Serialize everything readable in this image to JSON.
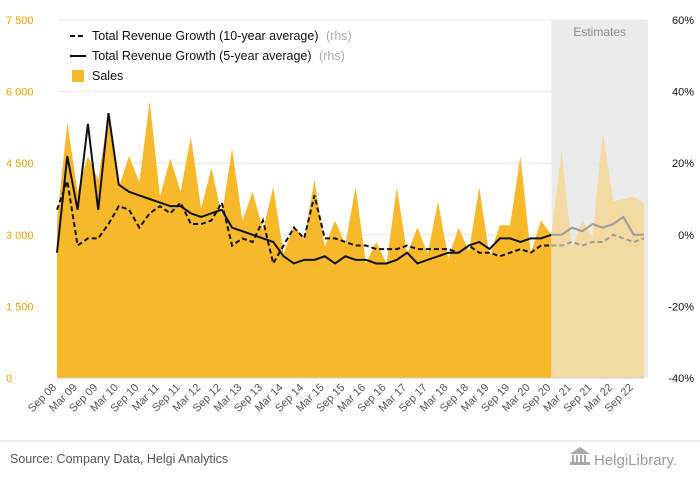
{
  "chart_data": {
    "type": "area",
    "x_labels": [
      "Sep 08",
      "Mar 09",
      "Sep 09",
      "Mar 10",
      "Sep 10",
      "Mar 11",
      "Sep 11",
      "Mar 12",
      "Sep 12",
      "Mar 13",
      "Sep 13",
      "Mar 14",
      "Sep 14",
      "Mar 15",
      "Sep 15",
      "Mar 16",
      "Sep 16",
      "Mar 17",
      "Sep 17",
      "Mar 18",
      "Sep 18",
      "Mar 19",
      "Sep 19",
      "Mar 20",
      "Sep 20",
      "Mar 21",
      "Sep 21",
      "Mar 22",
      "Sep 22"
    ],
    "quarters": [
      "Sep 08",
      "Dec 08",
      "Mar 09",
      "Jun 09",
      "Sep 09",
      "Dec 09",
      "Mar 10",
      "Jun 10",
      "Sep 10",
      "Dec 10",
      "Mar 11",
      "Jun 11",
      "Sep 11",
      "Dec 11",
      "Mar 12",
      "Jun 12",
      "Sep 12",
      "Dec 12",
      "Mar 13",
      "Jun 13",
      "Sep 13",
      "Dec 13",
      "Mar 14",
      "Jun 14",
      "Sep 14",
      "Dec 14",
      "Mar 15",
      "Jun 15",
      "Sep 15",
      "Dec 15",
      "Mar 16",
      "Jun 16",
      "Sep 16",
      "Dec 16",
      "Mar 17",
      "Jun 17",
      "Sep 17",
      "Dec 17",
      "Mar 18",
      "Jun 18",
      "Sep 18",
      "Dec 18",
      "Mar 19",
      "Jun 19",
      "Sep 19",
      "Dec 19",
      "Mar 20",
      "Jun 20",
      "Sep 20",
      "Dec 20",
      "Mar 21",
      "Jun 21",
      "Sep 21",
      "Dec 21",
      "Mar 22",
      "Jun 22",
      "Sep 22",
      "Dec 22"
    ],
    "estimates_start": "Sep 20",
    "estimates_label": "Estimates",
    "y_left": {
      "min": 0,
      "max": 7500,
      "ticks": [
        0,
        1500,
        3000,
        4500,
        6000,
        7500
      ],
      "tick_labels": [
        "0",
        "1 500",
        "3 000",
        "4 500",
        "6 000",
        "7 500"
      ]
    },
    "y_right": {
      "min": -40,
      "max": 60,
      "ticks": [
        -40,
        -20,
        0,
        20,
        40,
        60
      ],
      "tick_labels": [
        "-40%",
        "-20%",
        "0%",
        "20%",
        "40%",
        "60%"
      ]
    },
    "series": [
      {
        "name": "Sales",
        "axis": "left",
        "type": "area",
        "values": [
          3300,
          5350,
          3900,
          4650,
          4150,
          5550,
          4000,
          4650,
          4100,
          5800,
          3800,
          4600,
          3900,
          5050,
          3550,
          4400,
          3400,
          4800,
          3300,
          3900,
          3100,
          4000,
          2600,
          3200,
          2900,
          4150,
          2750,
          3300,
          2800,
          4000,
          2400,
          2850,
          2400,
          4000,
          2600,
          3150,
          2600,
          3700,
          2500,
          3150,
          2650,
          4000,
          2550,
          3200,
          3200,
          4650,
          2600,
          3300,
          3000,
          4750,
          2700,
          3300,
          2950,
          5150,
          3700,
          3750,
          3800,
          3650
        ]
      },
      {
        "name": "Total Revenue Growth (10-year average)",
        "label_suffix": "(rhs)",
        "axis": "right",
        "style": "dashed",
        "values": [
          7,
          15,
          -3,
          -1,
          -1,
          3,
          8,
          7,
          2,
          6,
          8,
          6,
          9,
          3,
          3,
          4,
          9,
          -3,
          -1,
          -2,
          4,
          -8,
          -3,
          2,
          -1,
          11,
          -1,
          -1,
          -2,
          -3,
          -3,
          -4,
          -4,
          -4,
          -3,
          -4,
          -4,
          -4,
          -4,
          -5,
          -3,
          -5,
          -5,
          -6,
          -5,
          -4,
          -5,
          -3,
          -3,
          -3,
          -2,
          -3,
          -2,
          -2,
          0,
          -1,
          -2,
          -1
        ]
      },
      {
        "name": "Total Revenue Growth (5-year average)",
        "label_suffix": "(rhs)",
        "axis": "right",
        "style": "solid",
        "values": [
          -5,
          22,
          7,
          31,
          7,
          34,
          14,
          12,
          11,
          10,
          9,
          8,
          8,
          6,
          5,
          6,
          7,
          2,
          1,
          0,
          -1,
          -2,
          -6,
          -8,
          -7,
          -7,
          -6,
          -8,
          -6,
          -7,
          -7,
          -8,
          -8,
          -7,
          -5,
          -8,
          -7,
          -6,
          -5,
          -5,
          -3,
          -2,
          -4,
          -1,
          -1,
          -2,
          -1,
          -1,
          0,
          0,
          2,
          1,
          3,
          2,
          3,
          5,
          0,
          0
        ]
      }
    ]
  },
  "legend": {
    "items": [
      {
        "label": "Total Revenue Growth (10-year average)",
        "suffix": "(rhs)"
      },
      {
        "label": "Total Revenue Growth (5-year average)",
        "suffix": "(rhs)"
      },
      {
        "label": "Sales",
        "suffix": ""
      }
    ]
  },
  "footer": {
    "source": "Source: Company Data, Helgi Analytics",
    "logo_text": "HelgiLibrary."
  },
  "colors": {
    "sales_fill": "#f7b92a",
    "sales_estimate_fill": "#f3d9a2",
    "estimates_band": "#ebebeb",
    "line_dark": "#111111",
    "line_estimate": "#9b9b9b",
    "left_tick_color": "#e8a400",
    "grid": "#e6e6e6"
  }
}
